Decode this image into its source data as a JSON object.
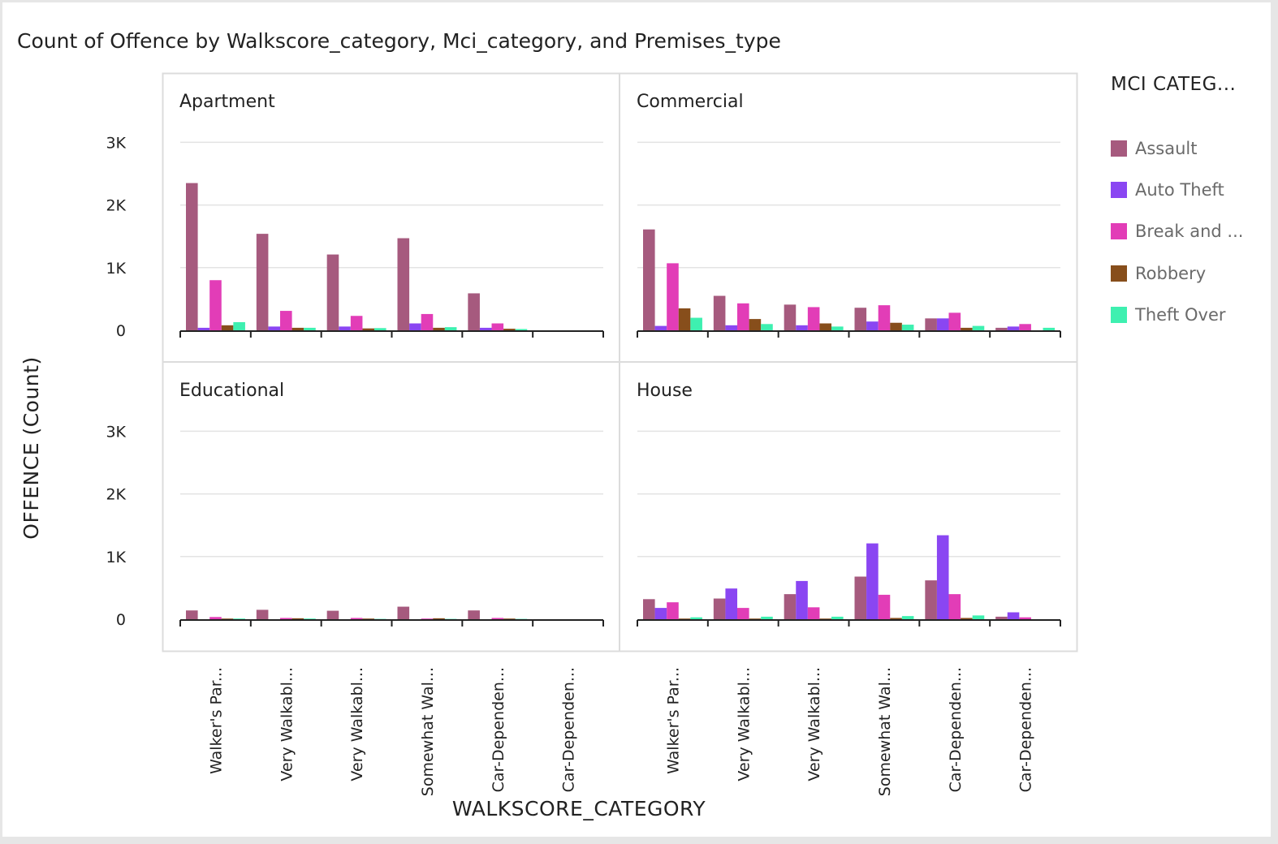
{
  "title": "Count of Offence by Walkscore_category, Mci_category, and Premises_type",
  "legend": {
    "title": "MCI CATEG...",
    "items": [
      {
        "label": "Assault",
        "color": "#a65a7e"
      },
      {
        "label": "Auto Theft",
        "color": "#8a46f2"
      },
      {
        "label": "Break and ...",
        "color": "#e23db7"
      },
      {
        "label": "Robbery",
        "color": "#874e1b"
      },
      {
        "label": "Theft Over",
        "color": "#3ef0b0"
      }
    ]
  },
  "chart_data": {
    "type": "bar",
    "xlabel": "WALKSCORE_CATEGORY",
    "ylabel": "OFFENCE (Count)",
    "ylim": [
      0,
      3000
    ],
    "yticks": [
      "0",
      "1K",
      "2K",
      "3K"
    ],
    "categories": [
      "Walker's Par...",
      "Very Walkabl...",
      "Very Walkabl...",
      "Somewhat Wal...",
      "Car-Dependen...",
      "Car-Dependen..."
    ],
    "series_names": [
      "Assault",
      "Auto Theft",
      "Break and ...",
      "Robbery",
      "Theft Over"
    ],
    "panels": [
      {
        "label": "Apartment",
        "values": [
          [
            2350,
            1540,
            1210,
            1470,
            590,
            0
          ],
          [
            40,
            60,
            60,
            110,
            40,
            0
          ],
          [
            800,
            310,
            230,
            260,
            110,
            0
          ],
          [
            80,
            40,
            30,
            40,
            25,
            0
          ],
          [
            130,
            40,
            35,
            50,
            20,
            0
          ]
        ]
      },
      {
        "label": "Commercial",
        "values": [
          [
            1610,
            550,
            410,
            360,
            190,
            40
          ],
          [
            70,
            80,
            80,
            140,
            190,
            60
          ],
          [
            1070,
            430,
            370,
            400,
            280,
            100
          ],
          [
            350,
            180,
            110,
            120,
            40,
            0
          ],
          [
            200,
            100,
            60,
            90,
            70,
            40
          ]
        ]
      },
      {
        "label": "Educational",
        "values": [
          [
            140,
            150,
            135,
            200,
            140,
            0
          ],
          [
            0,
            0,
            0,
            0,
            0,
            0
          ],
          [
            35,
            20,
            20,
            10,
            20,
            0
          ],
          [
            10,
            15,
            10,
            15,
            10,
            0
          ],
          [
            10,
            10,
            5,
            5,
            5,
            0
          ]
        ]
      },
      {
        "label": "House",
        "values": [
          [
            320,
            330,
            400,
            680,
            620,
            40
          ],
          [
            180,
            490,
            610,
            1210,
            1340,
            110
          ],
          [
            270,
            180,
            190,
            390,
            400,
            30
          ],
          [
            10,
            10,
            10,
            20,
            20,
            0
          ],
          [
            30,
            40,
            40,
            50,
            60,
            0
          ]
        ]
      }
    ]
  }
}
